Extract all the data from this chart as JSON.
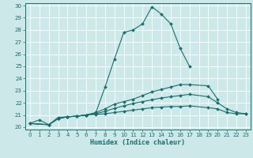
{
  "xlabel": "Humidex (Indice chaleur)",
  "bg_color": "#cce8e8",
  "line_color": "#1a6e6e",
  "xlim": [
    -0.5,
    23.5
  ],
  "ylim": [
    19.8,
    30.2
  ],
  "xticks": [
    0,
    1,
    2,
    3,
    4,
    5,
    6,
    7,
    8,
    9,
    10,
    11,
    12,
    13,
    14,
    15,
    16,
    17,
    18,
    19,
    20,
    21,
    22,
    23
  ],
  "yticks": [
    20,
    21,
    22,
    23,
    24,
    25,
    26,
    27,
    28,
    29,
    30
  ],
  "series": [
    {
      "x": [
        0,
        1,
        2,
        3,
        4,
        5,
        6,
        7,
        8,
        9,
        10,
        11,
        12,
        13,
        14,
        15,
        16,
        17
      ],
      "y": [
        20.3,
        20.6,
        20.2,
        20.8,
        20.85,
        20.9,
        21.0,
        21.15,
        23.3,
        25.6,
        27.8,
        28.0,
        28.5,
        29.9,
        29.3,
        28.5,
        26.5,
        25.0
      ]
    },
    {
      "x": [
        0,
        2,
        3,
        4,
        5,
        6,
        7,
        8,
        9,
        10,
        11,
        12,
        13,
        14,
        15,
        16,
        17,
        19,
        20
      ],
      "y": [
        20.3,
        20.2,
        20.7,
        20.85,
        20.9,
        21.0,
        21.2,
        21.5,
        21.9,
        22.1,
        22.3,
        22.6,
        22.9,
        23.1,
        23.3,
        23.5,
        23.5,
        23.4,
        22.3
      ]
    },
    {
      "x": [
        0,
        2,
        3,
        4,
        5,
        6,
        7,
        8,
        9,
        10,
        11,
        12,
        13,
        14,
        15,
        16,
        17,
        19,
        20,
        21,
        22,
        23
      ],
      "y": [
        20.3,
        20.2,
        20.7,
        20.85,
        20.9,
        21.0,
        21.1,
        21.3,
        21.55,
        21.75,
        21.95,
        22.1,
        22.25,
        22.4,
        22.5,
        22.6,
        22.7,
        22.5,
        22.0,
        21.5,
        21.2,
        21.1
      ]
    },
    {
      "x": [
        0,
        2,
        3,
        4,
        5,
        6,
        7,
        8,
        9,
        10,
        11,
        12,
        13,
        14,
        15,
        16,
        17,
        19,
        20,
        21,
        22,
        23
      ],
      "y": [
        20.3,
        20.2,
        20.7,
        20.85,
        20.9,
        21.0,
        21.05,
        21.1,
        21.2,
        21.3,
        21.4,
        21.5,
        21.6,
        21.65,
        21.7,
        21.7,
        21.75,
        21.6,
        21.5,
        21.2,
        21.1,
        21.1
      ]
    }
  ]
}
